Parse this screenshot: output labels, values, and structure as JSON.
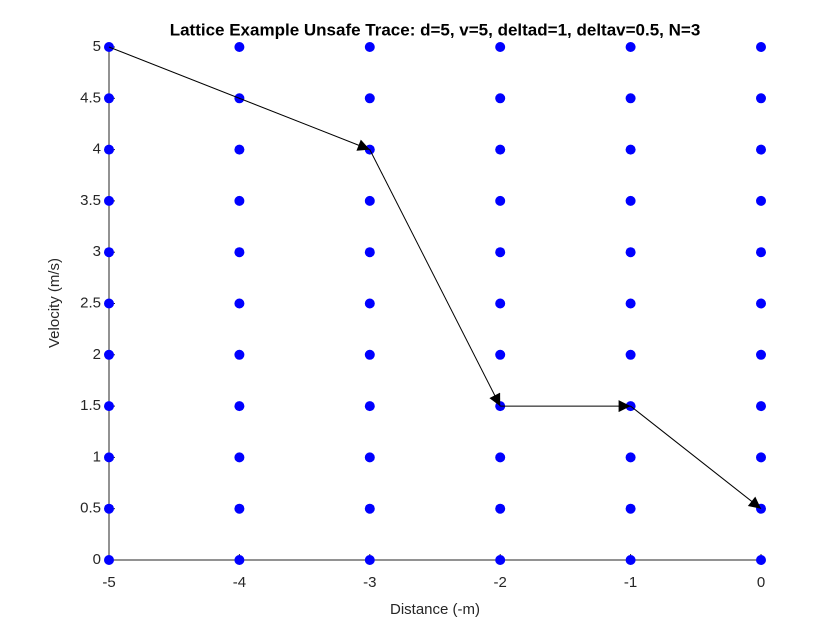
{
  "chart_data": {
    "type": "scatter",
    "title": "Lattice Example Unsafe Trace: d=5, v=5, deltad=1, deltav=0.5, N=3",
    "x_label": "Distance (-m)",
    "y_label": "Velocity (m/s)",
    "xlim": [
      -5,
      0
    ],
    "ylim": [
      0,
      5
    ],
    "xticks": [
      -5,
      -4,
      -3,
      -2,
      -1,
      0
    ],
    "yticks": [
      0,
      0.5,
      1,
      1.5,
      2,
      2.5,
      3,
      3.5,
      4,
      4.5,
      5
    ],
    "series": [
      {
        "type": "scatter",
        "color": "#0000ff",
        "x": [
          -5,
          -5,
          -5,
          -5,
          -5,
          -5,
          -5,
          -5,
          -5,
          -5,
          -5,
          -4,
          -4,
          -4,
          -4,
          -4,
          -4,
          -4,
          -4,
          -4,
          -4,
          -4,
          -3,
          -3,
          -3,
          -3,
          -3,
          -3,
          -3,
          -3,
          -3,
          -3,
          -3,
          -2,
          -2,
          -2,
          -2,
          -2,
          -2,
          -2,
          -2,
          -2,
          -2,
          -2,
          -1,
          -1,
          -1,
          -1,
          -1,
          -1,
          -1,
          -1,
          -1,
          -1,
          -1,
          0,
          0,
          0,
          0,
          0,
          0,
          0,
          0,
          0,
          0,
          0
        ],
        "values": [
          0,
          0.5,
          1,
          1.5,
          2,
          2.5,
          3,
          3.5,
          4,
          4.5,
          5,
          0,
          0.5,
          1,
          1.5,
          2,
          2.5,
          3,
          3.5,
          4,
          4.5,
          5,
          0,
          0.5,
          1,
          1.5,
          2,
          2.5,
          3,
          3.5,
          4,
          4.5,
          5,
          0,
          0.5,
          1,
          1.5,
          2,
          2.5,
          3,
          3.5,
          4,
          4.5,
          5,
          0,
          0.5,
          1,
          1.5,
          2,
          2.5,
          3,
          3.5,
          4,
          4.5,
          5,
          0,
          0.5,
          1,
          1.5,
          2,
          2.5,
          3,
          3.5,
          4,
          4.5,
          5
        ]
      },
      {
        "type": "arrows",
        "color": "#000000",
        "x": [
          -5,
          -3,
          -2,
          -1,
          0
        ],
        "values": [
          5,
          4,
          1.5,
          1.5,
          0.5
        ]
      }
    ]
  }
}
